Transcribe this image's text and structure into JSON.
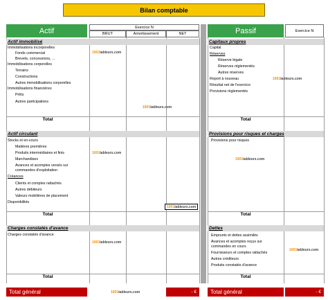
{
  "title": "Bilan comptable",
  "brand": {
    "prefix": "1001",
    "suffix": "tableurs.com"
  },
  "actif": {
    "header": "Actif",
    "exercice": "Exercice N",
    "cols": [
      "BRUT",
      "Amortissement",
      "NET"
    ],
    "sections": [
      {
        "title": "Actif immobilisé",
        "rows": [
          "Immobilisations incorporelles",
          "Fonds commercial",
          "Brevets, concessions, ...",
          "Immobilisations corporelles",
          "Terrains",
          "Constructions",
          "Autres immobilisations corporelles",
          "Immobilisations financières",
          "Prêts",
          "Autres participations"
        ],
        "total": "Total"
      },
      {
        "title": "Actif circulant",
        "rows": [
          "Stocks et en-cours",
          "Matières premières",
          "Produits intermédiaires et finis",
          "Marchandises",
          "Avances et acomptes versés sur",
          "commandes d'exploitation",
          "Créances",
          "Clients et comptes rattachés",
          "Autres débiteurs",
          "Valeurs mobilières de placement",
          "Disponibilités"
        ],
        "total": "Total"
      },
      {
        "title": "Charges constatés d'avance",
        "rows": [
          "Charges constatés d'avance"
        ],
        "total": "Total"
      }
    ],
    "grand_total": {
      "label": "Total général",
      "value": "- €"
    }
  },
  "passif": {
    "header": "Passif",
    "exercice": "Exercice N",
    "sections": [
      {
        "title": "Capitaux propres",
        "rows": [
          "Capital",
          "Réserves",
          "Réserve légale",
          "Réserves réglementés",
          "Autres réserves",
          "Report à nouveau",
          "Résultat net de l'exercice",
          "Provisions réglementés"
        ],
        "total": "Total"
      },
      {
        "title": "Provisions pour risques et charges",
        "rows": [
          "Provisions pour risques"
        ],
        "total": "Total"
      },
      {
        "title": "Dettes",
        "rows": [
          "Emprunts et dettes assimilés",
          "Avances et acomptes reçus sur",
          "commandes en cours",
          "Fournisseurs et comptes rattachés",
          "Autres créditeurs",
          "Produits constatés d'avance"
        ],
        "total": "Total"
      }
    ],
    "grand_total": {
      "label": "Total général",
      "value": "- €"
    }
  }
}
